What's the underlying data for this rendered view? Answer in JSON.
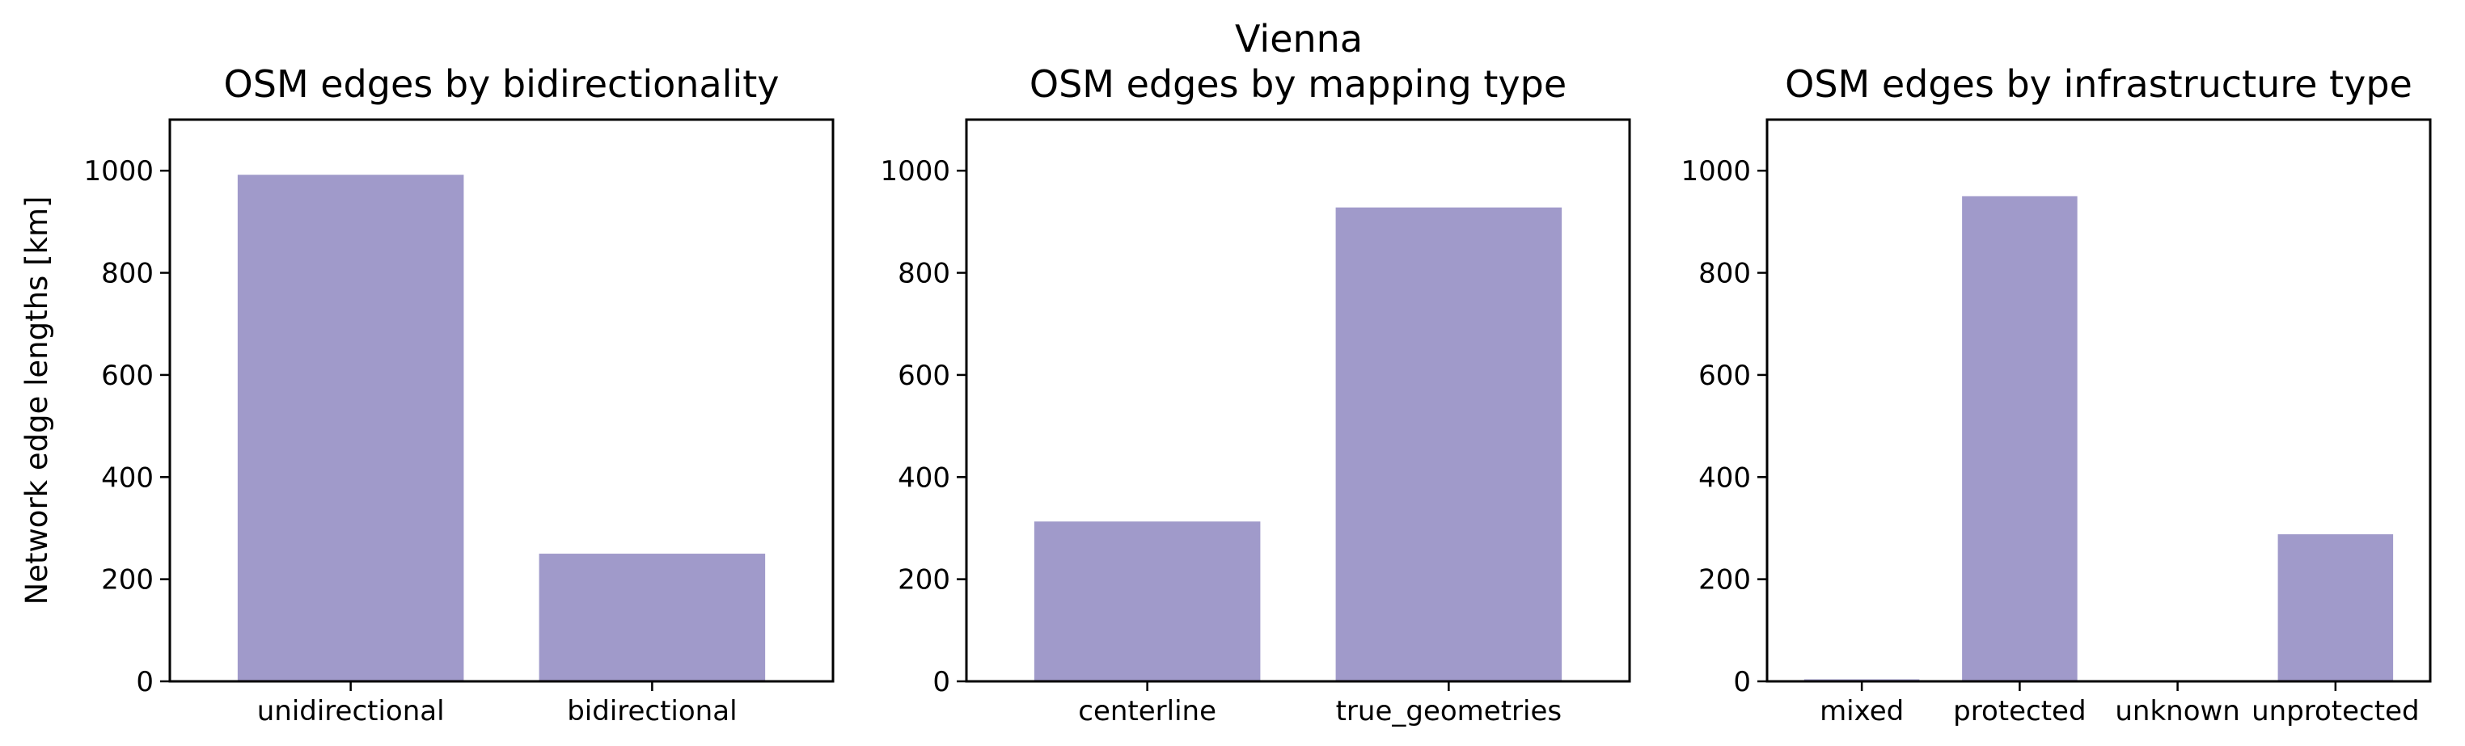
{
  "suptitle": "Vienna",
  "bar_color": "#a09aca",
  "chart_data": [
    {
      "type": "bar",
      "title": "OSM edges by bidirectionality",
      "xlabel": "",
      "ylabel": "Network edge lengths [km]",
      "ylim": [
        0,
        1100
      ],
      "yticks": [
        0,
        200,
        400,
        600,
        800,
        1000
      ],
      "grid": false,
      "categories": [
        "unidirectional",
        "bidirectional"
      ],
      "values": [
        992,
        250
      ]
    },
    {
      "type": "bar",
      "title": "OSM edges by mapping type",
      "xlabel": "",
      "ylabel": "",
      "ylim": [
        0,
        1100
      ],
      "yticks": [
        0,
        200,
        400,
        600,
        800,
        1000
      ],
      "grid": false,
      "categories": [
        "centerline",
        "true_geometries"
      ],
      "values": [
        313,
        928
      ]
    },
    {
      "type": "bar",
      "title": "OSM edges by infrastructure type",
      "xlabel": "",
      "ylabel": "",
      "ylim": [
        0,
        1100
      ],
      "yticks": [
        0,
        200,
        400,
        600,
        800,
        1000
      ],
      "grid": false,
      "categories": [
        "mixed",
        "protected",
        "unknown",
        "unprotected"
      ],
      "values": [
        4,
        950,
        0,
        288
      ]
    }
  ]
}
